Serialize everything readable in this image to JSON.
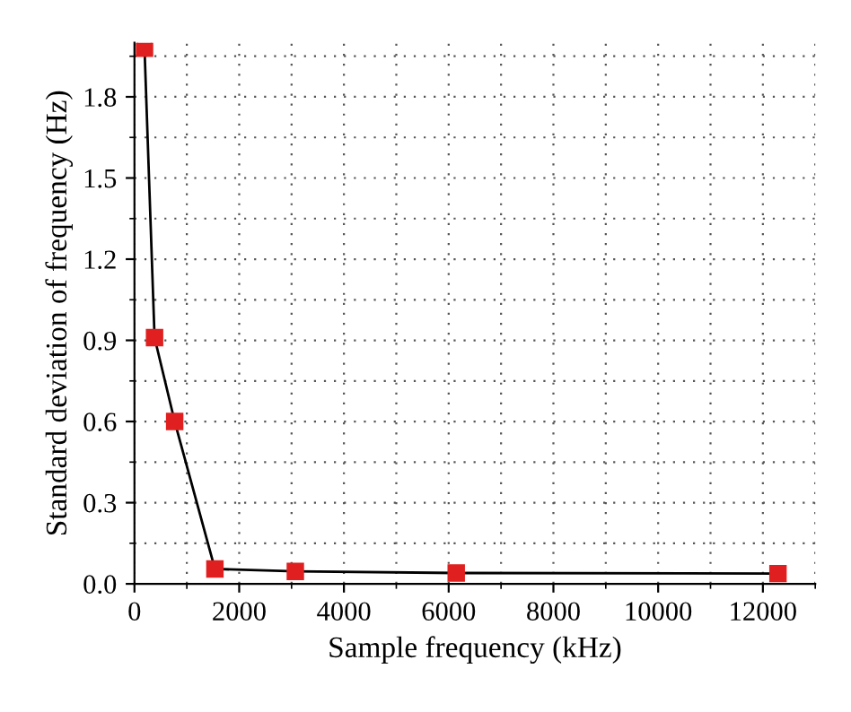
{
  "chart_data": {
    "type": "line",
    "xlabel": "Sample frequency (kHz)",
    "ylabel": "Standard deviation of frequency (Hz)",
    "x": [
      192,
      384,
      768,
      1536,
      3072,
      6144,
      12288
    ],
    "series": [
      {
        "color": "#e02020",
        "values": [
          1.98,
          0.91,
          0.6,
          0.055,
          0.046,
          0.04,
          0.038
        ]
      }
    ],
    "xlim": [
      0,
      13000
    ],
    "xticks": [
      0,
      2000,
      4000,
      6000,
      8000,
      10000,
      12000
    ],
    "ylim": [
      0,
      2.0
    ],
    "yticks": [
      {
        "value": 0,
        "label": "0.0"
      },
      0.3,
      0.6,
      0.9,
      1.2,
      1.5,
      1.8
    ],
    "grid": true,
    "marker": "square",
    "line_style": "solid"
  }
}
